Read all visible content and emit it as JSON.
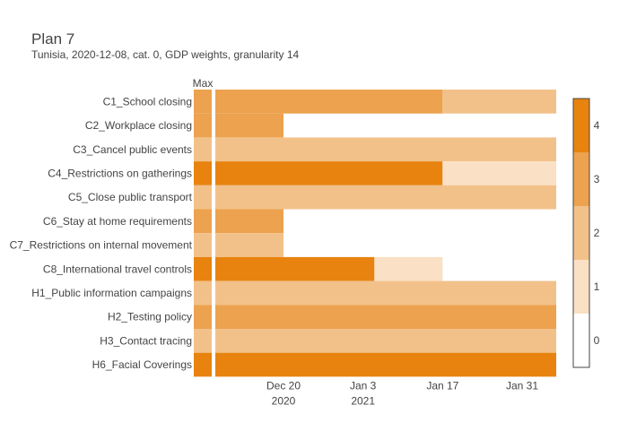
{
  "header": {
    "title": "Plan 7",
    "subtitle": "Tunisia, 2020-12-08, cat. 0, GDP weights, granularity 14"
  },
  "chart_data": {
    "type": "heatmap",
    "title": "Plan 7",
    "subtitle": "Tunisia, 2020-12-08, cat. 0, GDP weights, granularity 14",
    "max_column_label": "Max",
    "x_ticks": [
      {
        "date": "2020-12-20",
        "label": "Dec 20",
        "sublabel": "2020"
      },
      {
        "date": "2021-01-03",
        "label": "Jan 3",
        "sublabel": "2021"
      },
      {
        "date": "2021-01-17",
        "label": "Jan 17",
        "sublabel": ""
      },
      {
        "date": "2021-01-31",
        "label": "Jan 31",
        "sublabel": ""
      }
    ],
    "colorscale": {
      "levels": [
        0,
        1,
        2,
        3,
        4
      ],
      "colors": [
        "#ffffff",
        "#fae0c4",
        "#f2c18a",
        "#eca24f",
        "#e8830f"
      ],
      "ticks": [
        "0",
        "1",
        "2",
        "3",
        "4"
      ]
    },
    "rows": [
      {
        "name": "C1_School closing",
        "max": 3,
        "segments": [
          {
            "start": "2020-12-08",
            "end": "2021-01-17",
            "value": 3
          },
          {
            "start": "2021-01-17",
            "end": "2021-02-06",
            "value": 2
          }
        ]
      },
      {
        "name": "C2_Workplace closing",
        "max": 3,
        "segments": [
          {
            "start": "2020-12-08",
            "end": "2020-12-20",
            "value": 3
          }
        ]
      },
      {
        "name": "C3_Cancel public events",
        "max": 2,
        "segments": [
          {
            "start": "2020-12-08",
            "end": "2021-02-06",
            "value": 2
          }
        ]
      },
      {
        "name": "C4_Restrictions on gatherings",
        "max": 4,
        "segments": [
          {
            "start": "2020-12-08",
            "end": "2021-01-17",
            "value": 4
          },
          {
            "start": "2021-01-17",
            "end": "2021-02-06",
            "value": 1
          }
        ]
      },
      {
        "name": "C5_Close public transport",
        "max": 2,
        "segments": [
          {
            "start": "2020-12-08",
            "end": "2021-02-06",
            "value": 2
          }
        ]
      },
      {
        "name": "C6_Stay at home requirements",
        "max": 3,
        "segments": [
          {
            "start": "2020-12-08",
            "end": "2020-12-20",
            "value": 3
          }
        ]
      },
      {
        "name": "C7_Restrictions on internal movement",
        "max": 2,
        "segments": [
          {
            "start": "2020-12-08",
            "end": "2020-12-20",
            "value": 2
          }
        ]
      },
      {
        "name": "C8_International travel controls",
        "max": 4,
        "segments": [
          {
            "start": "2020-12-08",
            "end": "2021-01-05",
            "value": 4
          },
          {
            "start": "2021-01-05",
            "end": "2021-01-17",
            "value": 1
          }
        ]
      },
      {
        "name": "H1_Public information campaigns",
        "max": 2,
        "segments": [
          {
            "start": "2020-12-08",
            "end": "2021-02-06",
            "value": 2
          }
        ]
      },
      {
        "name": "H2_Testing policy",
        "max": 3,
        "segments": [
          {
            "start": "2020-12-08",
            "end": "2021-02-06",
            "value": 3
          }
        ]
      },
      {
        "name": "H3_Contact tracing",
        "max": 2,
        "segments": [
          {
            "start": "2020-12-08",
            "end": "2021-02-06",
            "value": 2
          }
        ]
      },
      {
        "name": "H6_Facial Coverings",
        "max": 4,
        "segments": [
          {
            "start": "2020-12-08",
            "end": "2021-02-06",
            "value": 4
          }
        ]
      }
    ],
    "x_range": [
      "2020-12-08",
      "2021-02-06"
    ]
  }
}
